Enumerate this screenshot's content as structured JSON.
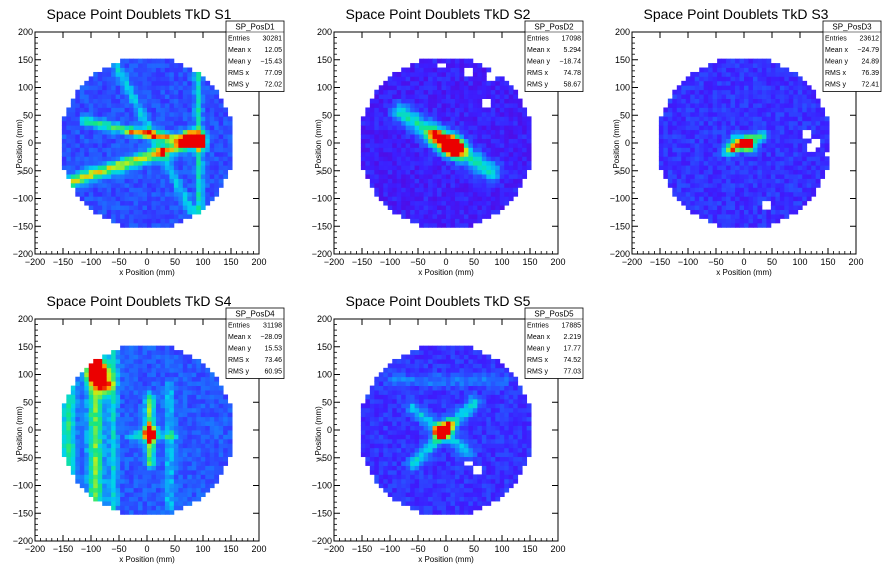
{
  "chart_data": [
    {
      "type": "heatmap",
      "title": "Space Point Doublets TkD S1",
      "xlabel": "x Position (mm)",
      "ylabel": "y Position (mm)",
      "xlim": [
        -200,
        200
      ],
      "ylim": [
        -200,
        200
      ],
      "xticks": [
        "−200",
        "−150",
        "−100",
        "−50",
        "0",
        "50",
        "100",
        "150",
        "200"
      ],
      "yticks": [
        "200",
        "150",
        "100",
        "50",
        "0",
        "−50",
        "−100",
        "−150",
        "−200"
      ],
      "stats": {
        "name": "SP_PosD1",
        "rows": [
          [
            "Entries",
            "30281"
          ],
          [
            "Mean x",
            "12.05"
          ],
          [
            "Mean y",
            "−15.43"
          ],
          [
            "RMS x",
            "77.09"
          ],
          [
            "RMS y",
            "72.02"
          ]
        ]
      },
      "pattern": {
        "base": 0.18,
        "seed": 11,
        "lines": [
          [
            -140,
            -70,
            90,
            5,
            0.55,
            8
          ],
          [
            -110,
            40,
            100,
            -5,
            0.4,
            6
          ],
          [
            90,
            160,
            95,
            -140,
            0.35,
            5
          ],
          [
            -60,
            150,
            100,
            -160,
            0.25,
            6
          ],
          [
            -30,
            20,
            90,
            10,
            0.3,
            5
          ]
        ],
        "spots": [
          [
            75,
            12,
            1.0,
            8
          ],
          [
            95,
            8,
            0.6,
            8
          ]
        ],
        "holes": []
      }
    },
    {
      "type": "heatmap",
      "title": "Space Point Doublets TkD S2",
      "xlabel": "x Position (mm)",
      "ylabel": "y Position (mm)",
      "xlim": [
        -200,
        200
      ],
      "ylim": [
        -200,
        200
      ],
      "xticks": [
        "−200",
        "−150",
        "−100",
        "−50",
        "0",
        "50",
        "100",
        "150",
        "200"
      ],
      "yticks": [
        "200",
        "150",
        "100",
        "50",
        "0",
        "−50",
        "−100",
        "−150",
        "−200"
      ],
      "stats": {
        "name": "SP_PosD2",
        "rows": [
          [
            "Entries",
            "17098"
          ],
          [
            "Mean x",
            "5.294"
          ],
          [
            "Mean y",
            "−18.74"
          ],
          [
            "RMS x",
            "74.78"
          ],
          [
            "RMS y",
            "58.67"
          ]
        ]
      },
      "pattern": {
        "base": 0.07,
        "seed": 23,
        "lines": [
          [
            -80,
            55,
            80,
            -50,
            0.45,
            12
          ]
        ],
        "spots": [
          [
            5,
            -2,
            0.95,
            12
          ],
          [
            20,
            -10,
            0.6,
            12
          ],
          [
            -20,
            12,
            0.5,
            12
          ]
        ],
        "holes": [
          [
            40,
            130
          ],
          [
            80,
            120
          ],
          [
            95,
            125
          ],
          [
            125,
            120
          ],
          [
            150,
            90
          ],
          [
            110,
            150
          ],
          [
            60,
            165
          ],
          [
            -5,
            140
          ],
          [
            75,
            75
          ],
          [
            -160,
            40
          ]
        ]
      }
    },
    {
      "type": "heatmap",
      "title": "Space Point Doublets TkD S3",
      "xlabel": "x Position (mm)",
      "ylabel": "y Position (mm)",
      "xlim": [
        -200,
        200
      ],
      "ylim": [
        -200,
        200
      ],
      "xticks": [
        "−200",
        "−150",
        "−100",
        "−50",
        "0",
        "50",
        "100",
        "150",
        "200"
      ],
      "yticks": [
        "200",
        "150",
        "100",
        "50",
        "0",
        "−50",
        "−100",
        "−150",
        "−200"
      ],
      "stats": {
        "name": "SP_PosD3",
        "rows": [
          [
            "Entries",
            "23612"
          ],
          [
            "Mean x",
            "−24.79"
          ],
          [
            "Mean y",
            "24.89"
          ],
          [
            "RMS x",
            "76.39"
          ],
          [
            "RMS y",
            "72.41"
          ]
        ]
      },
      "pattern": {
        "base": 0.12,
        "seed": 37,
        "lines": [
          [
            -30,
            -15,
            35,
            15,
            0.45,
            6
          ],
          [
            -15,
            10,
            15,
            -10,
            0.3,
            6
          ]
        ],
        "spots": [
          [
            5,
            0,
            0.85,
            8
          ],
          [
            -20,
            -5,
            0.45,
            8
          ]
        ],
        "holes": [
          [
            115,
            15
          ],
          [
            130,
            0
          ],
          [
            120,
            -10
          ],
          [
            150,
            -20
          ],
          [
            40,
            -110
          ],
          [
            60,
            150
          ]
        ]
      }
    },
    {
      "type": "heatmap",
      "title": "Space Point Doublets TkD S4",
      "xlabel": "x Position (mm)",
      "ylabel": "y Position (mm)",
      "xlim": [
        -200,
        200
      ],
      "ylim": [
        -200,
        200
      ],
      "xticks": [
        "−200",
        "−150",
        "−100",
        "−50",
        "0",
        "50",
        "100",
        "150",
        "200"
      ],
      "yticks": [
        "200",
        "150",
        "100",
        "50",
        "0",
        "−50",
        "−100",
        "−150",
        "−200"
      ],
      "stats": {
        "name": "SP_PosD4",
        "rows": [
          [
            "Entries",
            "31198"
          ],
          [
            "Mean x",
            "−28.09"
          ],
          [
            "Mean y",
            "15.53"
          ],
          [
            "RMS x",
            "73.46"
          ],
          [
            "RMS y",
            "60.95"
          ]
        ]
      },
      "pattern": {
        "base": 0.2,
        "seed": 41,
        "lines": [
          [
            -92,
            140,
            -92,
            -140,
            0.45,
            10
          ],
          [
            -140,
            100,
            -140,
            -100,
            0.35,
            9
          ],
          [
            -60,
            140,
            -60,
            -140,
            0.25,
            6
          ],
          [
            5,
            60,
            5,
            -60,
            0.45,
            6
          ],
          [
            40,
            80,
            40,
            -140,
            0.2,
            6
          ],
          [
            -30,
            -10,
            50,
            -10,
            0.2,
            6
          ]
        ],
        "spots": [
          [
            -88,
            105,
            1.0,
            14
          ],
          [
            -75,
            80,
            0.6,
            10
          ],
          [
            5,
            -5,
            0.6,
            10
          ]
        ],
        "holes": []
      }
    },
    {
      "type": "heatmap",
      "title": "Space Point Doublets TkD S5",
      "xlabel": "x Position (mm)",
      "ylabel": "y Position (mm)",
      "xlim": [
        -200,
        200
      ],
      "ylim": [
        -200,
        200
      ],
      "xticks": [
        "−200",
        "−150",
        "−100",
        "−50",
        "0",
        "50",
        "100",
        "150",
        "200"
      ],
      "yticks": [
        "200",
        "150",
        "100",
        "50",
        "0",
        "−50",
        "−100",
        "−150",
        "−200"
      ],
      "stats": {
        "name": "SP_PosD5",
        "rows": [
          [
            "Entries",
            "17885"
          ],
          [
            "Mean x",
            "2.219"
          ],
          [
            "Mean y",
            "17.77"
          ],
          [
            "RMS x",
            "74.52"
          ],
          [
            "RMS y",
            "77.03"
          ]
        ]
      },
      "pattern": {
        "base": 0.12,
        "seed": 53,
        "lines": [
          [
            -60,
            -60,
            50,
            50,
            0.35,
            8
          ],
          [
            -60,
            40,
            40,
            -40,
            0.3,
            8
          ],
          [
            -100,
            90,
            100,
            90,
            0.15,
            8
          ]
        ],
        "spots": [
          [
            -10,
            -2,
            1.0,
            8
          ],
          [
            5,
            10,
            0.5,
            8
          ]
        ],
        "holes": [
          [
            55,
            -70
          ],
          [
            40,
            -60
          ]
        ]
      }
    }
  ]
}
